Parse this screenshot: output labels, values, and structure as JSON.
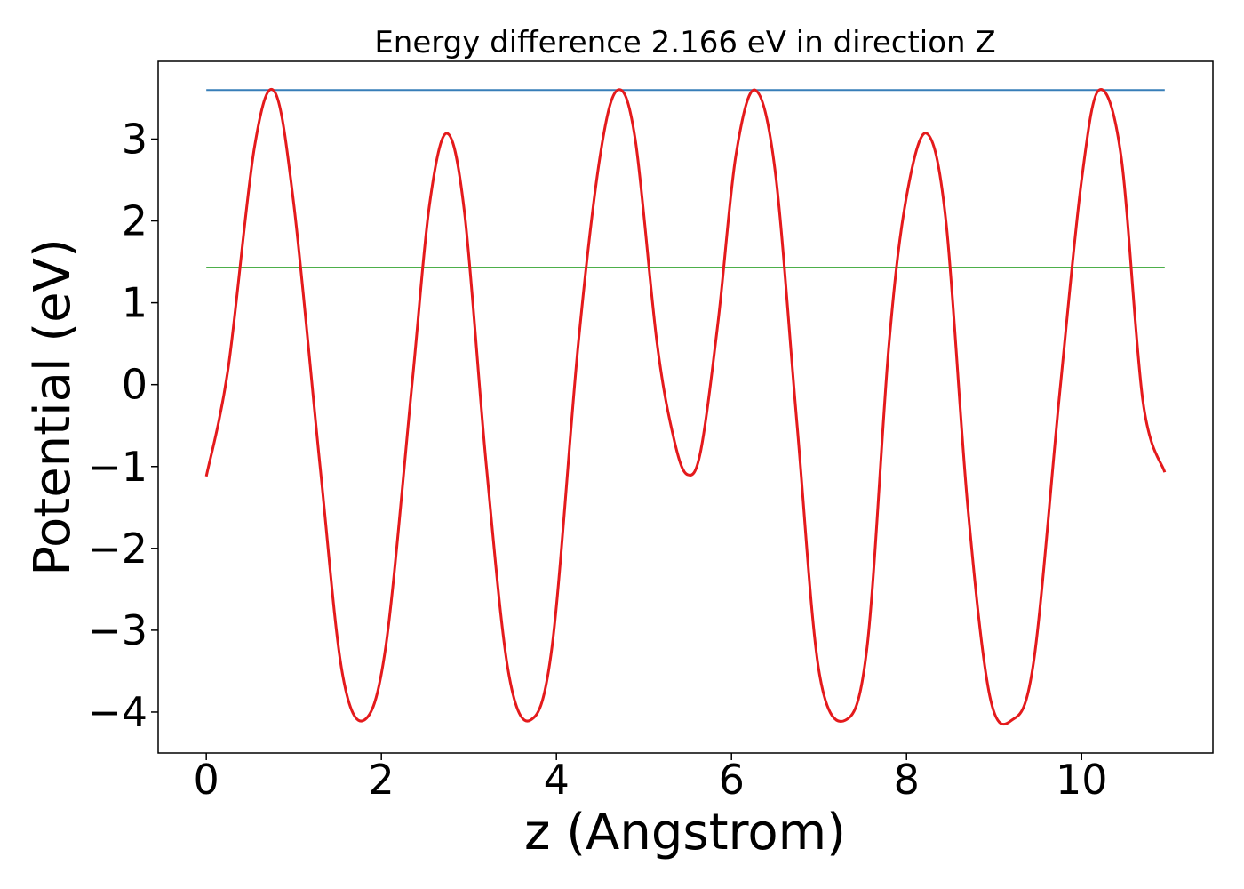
{
  "colors": {
    "potential": "#e41a1c",
    "max_line": "#377eb8",
    "avg_line": "#4daf4a",
    "axes": "#000000",
    "background": "#ffffff"
  },
  "chart_data": {
    "type": "line",
    "title": "Energy difference 2.166 eV in direction Z",
    "xlabel": "z (Angstrom)",
    "ylabel": "Potential (eV)",
    "xlim": [
      -0.55,
      11.5
    ],
    "ylim": [
      -4.5,
      3.95
    ],
    "xticks": [
      0,
      2,
      4,
      6,
      8,
      10
    ],
    "xtick_labels": [
      "0",
      "2",
      "4",
      "6",
      "8",
      "10"
    ],
    "yticks": [
      -4,
      -3,
      -2,
      -1,
      0,
      1,
      2,
      3
    ],
    "ytick_labels": [
      "−4",
      "−3",
      "−2",
      "−1",
      "0",
      "1",
      "2",
      "3"
    ],
    "grid": false,
    "legend": "none",
    "series": [
      {
        "x": [
          0.0,
          0.25,
          0.55,
          0.78,
          1.0,
          1.3,
          1.55,
          1.8,
          2.05,
          2.35,
          2.55,
          2.75,
          2.95,
          3.2,
          3.45,
          3.7,
          3.95,
          4.25,
          4.5,
          4.7,
          4.9,
          5.15,
          5.35,
          5.5,
          5.65,
          5.85,
          6.05,
          6.27,
          6.5,
          6.75,
          7.0,
          7.3,
          7.55,
          7.8,
          8.0,
          8.23,
          8.45,
          8.7,
          8.95,
          9.2,
          9.45,
          9.75,
          10.0,
          10.2,
          10.45,
          10.7,
          10.95
        ],
        "values": [
          -1.12,
          0.2,
          2.9,
          3.58,
          2.2,
          -1.0,
          -3.5,
          -4.1,
          -3.2,
          0.0,
          2.2,
          3.07,
          2.1,
          -1.0,
          -3.5,
          -4.1,
          -3.2,
          0.5,
          2.8,
          3.6,
          3.0,
          0.5,
          -0.7,
          -1.1,
          -0.8,
          0.8,
          2.8,
          3.6,
          2.6,
          -0.5,
          -3.5,
          -4.1,
          -3.2,
          0.5,
          2.3,
          3.07,
          2.0,
          -1.5,
          -3.8,
          -4.1,
          -3.4,
          -0.1,
          2.5,
          3.6,
          2.8,
          -0.2,
          -1.07
        ]
      },
      {
        "x": [
          0.0,
          10.95
        ],
        "values": [
          3.6,
          3.6
        ]
      },
      {
        "x": [
          0.0,
          10.95
        ],
        "values": [
          1.43,
          1.43
        ]
      }
    ]
  }
}
